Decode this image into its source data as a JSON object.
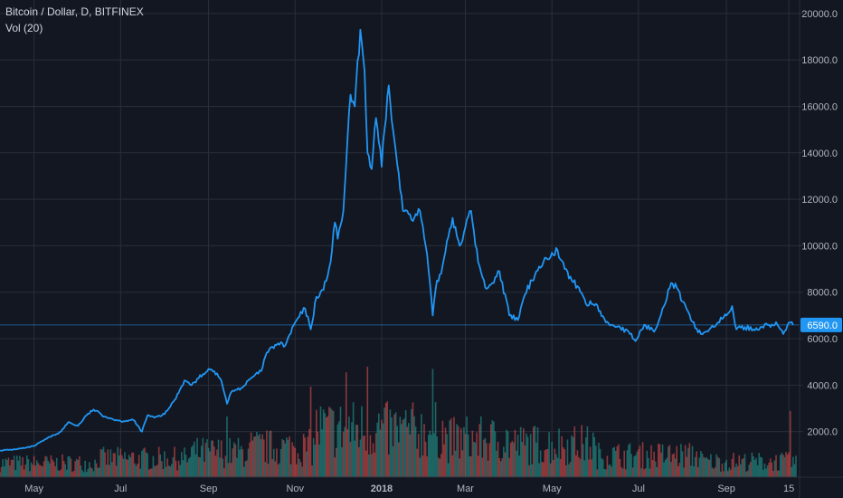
{
  "header": {
    "symbol_line": "Bitcoin / Dollar, D, BITFINEX",
    "indicator_line": "Vol (20)"
  },
  "colors": {
    "background": "#131722",
    "grid": "#2a2e39",
    "axis_text": "#b2b5be",
    "line": "#2196f3",
    "price_marker_bg": "#2196f3",
    "price_marker_text": "#ffffff",
    "vol_up": "#26a69a",
    "vol_down": "#ef5350"
  },
  "chart_data": [
    {
      "type": "line",
      "title": "Bitcoin / Dollar, D, BITFINEX",
      "series": [
        {
          "name": "Bitcoin / Dollar",
          "x": [
            "2017-04-07",
            "2017-04-15",
            "2017-04-25",
            "2017-05-01",
            "2017-05-10",
            "2017-05-20",
            "2017-05-25",
            "2017-06-01",
            "2017-06-07",
            "2017-06-12",
            "2017-06-20",
            "2017-06-25",
            "2017-07-01",
            "2017-07-10",
            "2017-07-16",
            "2017-07-20",
            "2017-07-25",
            "2017-08-01",
            "2017-08-08",
            "2017-08-15",
            "2017-08-20",
            "2017-08-25",
            "2017-09-01",
            "2017-09-05",
            "2017-09-10",
            "2017-09-14",
            "2017-09-17",
            "2017-09-20",
            "2017-09-25",
            "2017-10-01",
            "2017-10-08",
            "2017-10-12",
            "2017-10-20",
            "2017-10-25",
            "2017-11-01",
            "2017-11-08",
            "2017-11-12",
            "2017-11-16",
            "2017-11-21",
            "2017-11-26",
            "2017-11-29",
            "2017-12-01",
            "2017-12-05",
            "2017-12-07",
            "2017-12-10",
            "2017-12-13",
            "2017-12-17",
            "2017-12-20",
            "2017-12-22",
            "2017-12-25",
            "2017-12-28",
            "2018-01-01",
            "2018-01-03",
            "2018-01-06",
            "2018-01-09",
            "2018-01-12",
            "2018-01-16",
            "2018-01-19",
            "2018-01-24",
            "2018-01-28",
            "2018-02-01",
            "2018-02-03",
            "2018-02-06",
            "2018-02-09",
            "2018-02-12",
            "2018-02-16",
            "2018-02-20",
            "2018-02-25",
            "2018-03-01",
            "2018-03-05",
            "2018-03-10",
            "2018-03-15",
            "2018-03-20",
            "2018-03-25",
            "2018-04-01",
            "2018-04-07",
            "2018-04-12",
            "2018-04-20",
            "2018-04-25",
            "2018-05-01",
            "2018-05-05",
            "2018-05-10",
            "2018-05-15",
            "2018-05-20",
            "2018-05-25",
            "2018-06-01",
            "2018-06-08",
            "2018-06-12",
            "2018-06-18",
            "2018-06-25",
            "2018-06-29",
            "2018-07-05",
            "2018-07-12",
            "2018-07-18",
            "2018-07-24",
            "2018-07-28",
            "2018-08-01",
            "2018-08-07",
            "2018-08-14",
            "2018-08-20",
            "2018-08-26",
            "2018-09-01",
            "2018-09-05",
            "2018-09-08",
            "2018-09-14",
            "2018-09-20",
            "2018-09-25",
            "2018-10-01",
            "2018-10-07",
            "2018-10-11",
            "2018-10-15",
            "2018-10-18"
          ],
          "values": [
            1190,
            1220,
            1300,
            1380,
            1700,
            2000,
            2400,
            2250,
            2700,
            2950,
            2650,
            2550,
            2450,
            2500,
            2000,
            2700,
            2600,
            2750,
            3350,
            4200,
            4000,
            4300,
            4700,
            4600,
            4200,
            3200,
            3700,
            3800,
            3900,
            4300,
            4600,
            5400,
            5800,
            5700,
            6700,
            7300,
            6400,
            7800,
            8100,
            9300,
            11000,
            10300,
            11500,
            13500,
            16500,
            16000,
            19300,
            17500,
            14000,
            13300,
            15500,
            13400,
            15000,
            16900,
            15000,
            13500,
            11500,
            11500,
            11200,
            11500,
            10000,
            9000,
            7000,
            8500,
            8800,
            10200,
            11200,
            10000,
            10800,
            11500,
            9300,
            8200,
            8400,
            8900,
            7000,
            6800,
            7900,
            8900,
            9300,
            9700,
            9800,
            9000,
            8500,
            8200,
            7500,
            7500,
            6700,
            6600,
            6500,
            6200,
            5900,
            6600,
            6300,
            7300,
            8400,
            8200,
            7600,
            6800,
            6200,
            6400,
            6700,
            7000,
            7400,
            6400,
            6500,
            6400,
            6500,
            6600,
            6600,
            6200,
            6700,
            6590
          ]
        }
      ],
      "ylim": [
        0,
        20500
      ],
      "y_ticks": [
        "2000.0",
        "4000.0",
        "6000.0",
        "8000.0",
        "10000.0",
        "12000.0",
        "14000.0",
        "16000.0",
        "18000.0",
        "20000.0"
      ],
      "x_ticks": [
        {
          "label": "May",
          "date": "2017-05-01",
          "bold": false
        },
        {
          "label": "Jul",
          "date": "2017-07-01",
          "bold": false
        },
        {
          "label": "Sep",
          "date": "2017-09-01",
          "bold": false
        },
        {
          "label": "Nov",
          "date": "2017-11-01",
          "bold": false
        },
        {
          "label": "2018",
          "date": "2018-01-01",
          "bold": true
        },
        {
          "label": "Mar",
          "date": "2018-03-01",
          "bold": false
        },
        {
          "label": "May",
          "date": "2018-05-01",
          "bold": false
        },
        {
          "label": "Jul",
          "date": "2018-07-01",
          "bold": false
        },
        {
          "label": "Sep",
          "date": "2018-09-01",
          "bold": false
        },
        {
          "label": "15",
          "date": "2018-10-15",
          "bold": false
        }
      ],
      "last_value_label": "6590.0",
      "grid": true
    },
    {
      "type": "bar",
      "title": "Vol (20)",
      "series": [
        {
          "name": "Vol (20)",
          "periods": [
            {
              "start": "2017-04-01",
              "end": "2017-06-15",
              "level": 0.18
            },
            {
              "start": "2017-06-15",
              "end": "2017-08-20",
              "level": 0.24
            },
            {
              "start": "2017-08-20",
              "end": "2017-10-01",
              "level": 0.32
            },
            {
              "start": "2017-10-01",
              "end": "2017-11-15",
              "level": 0.38
            },
            {
              "start": "2017-11-15",
              "end": "2018-01-01",
              "level": 0.62
            },
            {
              "start": "2018-01-01",
              "end": "2018-02-15",
              "level": 0.6
            },
            {
              "start": "2018-02-15",
              "end": "2018-04-01",
              "level": 0.48
            },
            {
              "start": "2018-04-01",
              "end": "2018-06-01",
              "level": 0.42
            },
            {
              "start": "2018-06-01",
              "end": "2018-08-15",
              "level": 0.28
            },
            {
              "start": "2018-08-15",
              "end": "2018-10-20",
              "level": 0.2
            }
          ],
          "peaks": [
            {
              "date": "2017-09-14",
              "level": 0.55
            },
            {
              "date": "2017-11-12",
              "level": 0.82
            },
            {
              "date": "2017-12-07",
              "level": 0.95
            },
            {
              "date": "2017-12-22",
              "level": 1.0
            },
            {
              "date": "2018-02-06",
              "level": 0.98
            },
            {
              "date": "2018-03-02",
              "level": 0.55
            },
            {
              "date": "2018-10-16",
              "level": 0.6
            }
          ]
        }
      ]
    }
  ]
}
